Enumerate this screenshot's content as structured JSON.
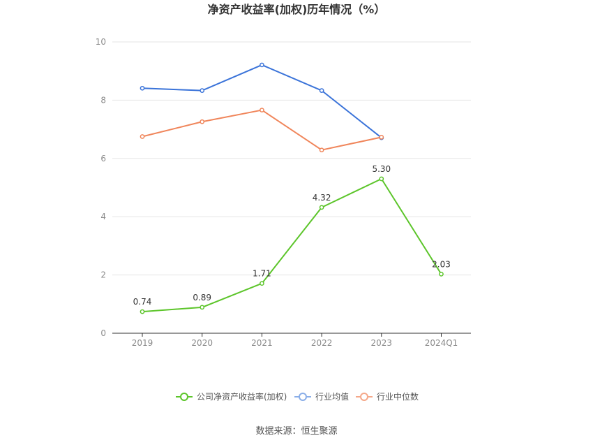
{
  "chart_data": {
    "type": "line",
    "title": "净资产收益率(加权)历年情况（%）",
    "categories": [
      "2019",
      "2020",
      "2021",
      "2022",
      "2023",
      "2024Q1"
    ],
    "ylim": [
      0,
      10
    ],
    "yticks": [
      0,
      2,
      4,
      6,
      8,
      10
    ],
    "grid": true,
    "legend_position": "bottom",
    "series": [
      {
        "name": "公司净资产收益率(加权)",
        "color": "#5cc52a",
        "values": [
          0.74,
          0.89,
          1.71,
          4.32,
          5.3,
          2.03
        ],
        "labels": [
          "0.74",
          "0.89",
          "1.71",
          "4.32",
          "5.30",
          "2.03"
        ]
      },
      {
        "name": "行业均值",
        "color": "#3a73d9",
        "values": [
          8.41,
          8.33,
          9.21,
          8.33,
          6.71,
          null
        ],
        "labels": null
      },
      {
        "name": "行业中位数",
        "color": "#f0855a",
        "values": [
          6.75,
          7.26,
          7.66,
          6.29,
          6.73,
          null
        ],
        "labels": null
      }
    ],
    "legend_colors": [
      "#5cc52a",
      "#8aaee8",
      "#f5a889"
    ]
  },
  "source": "数据来源：恒生聚源"
}
